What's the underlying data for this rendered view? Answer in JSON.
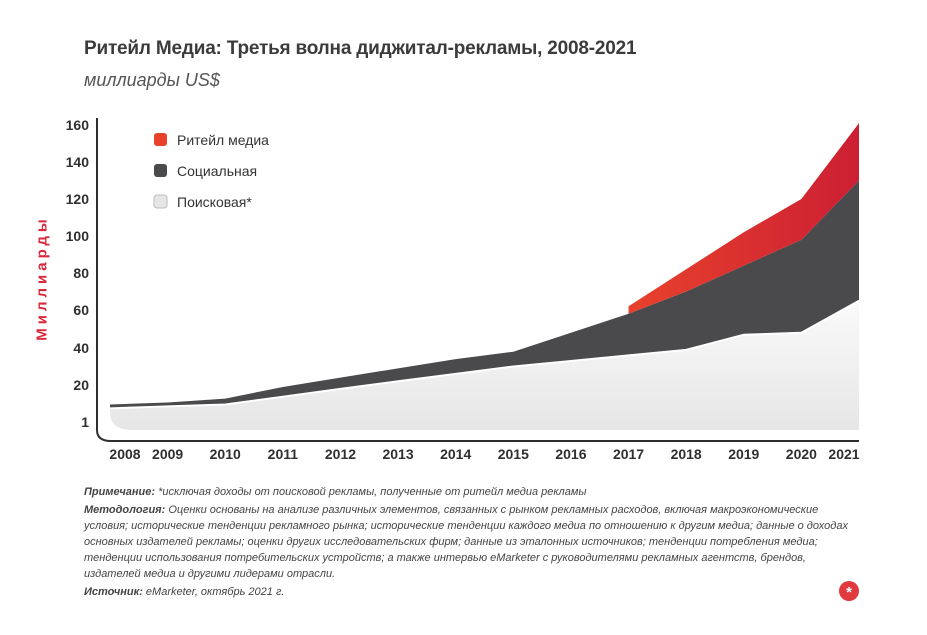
{
  "header": {
    "title": "Ритейл Медиа: Третья волна диджитал-рекламы, 2008-2021",
    "subtitle": "миллиарды US$"
  },
  "colors": {
    "retail": "#e8412c",
    "retail_dark": "#cc1f33",
    "social": "#4a4a4c",
    "search": "#e6e6e6",
    "search_top": "#fafafa",
    "axis": "#2f2f2f",
    "accent": "#d8283a"
  },
  "chart_data": {
    "type": "area",
    "stacked": true,
    "title": "Ритейл Медиа: Третья волна диджитал-рекламы, 2008-2021",
    "subtitle": "миллиарды US$",
    "ylabel": "Миллиарды",
    "xlabel": "",
    "categories": [
      "2008",
      "2009",
      "2010",
      "2011",
      "2012",
      "2013",
      "2014",
      "2015",
      "2016",
      "2017",
      "2018",
      "2019",
      "2020",
      "2021"
    ],
    "y_ticks": [
      1,
      20,
      40,
      60,
      80,
      100,
      120,
      140,
      160
    ],
    "ylim": [
      1,
      160
    ],
    "legend_position": "top-left",
    "grid": false,
    "series": [
      {
        "name": "Поисковая*",
        "cumulative": [
          8,
          9,
          10,
          14,
          18,
          22,
          26,
          30,
          33,
          36,
          39,
          47,
          48,
          65
        ]
      },
      {
        "name": "Социальная",
        "cumulative": [
          10,
          11,
          13,
          19,
          24,
          29,
          34,
          38,
          48,
          58,
          70,
          84,
          98,
          130
        ]
      },
      {
        "name": "Ритейл медиа",
        "cumulative": [
          null,
          null,
          null,
          null,
          null,
          null,
          null,
          null,
          null,
          62,
          82,
          102,
          120,
          161
        ]
      }
    ]
  },
  "legend": [
    {
      "label": "Ритейл медиа",
      "color": "#e8412c"
    },
    {
      "label": "Социальная",
      "color": "#4a4a4c"
    },
    {
      "label": "Поисковая*",
      "color": "#e6e6e6"
    }
  ],
  "notes": {
    "note_label": "Примечание:",
    "note_text": " *исключая доходы от поисковой рекламы, полученные от ритейл медиа рекламы",
    "method_label": "Методология:",
    "method_text": " Оценки основаны на анализе различных элементов, связанных с рынком рекламных расходов, включая макроэкономические условия; исторические тенденции рекламного рынка; исторические тенденции каждого медиа по отношению к другим медиа; данные о доходах основных издателей рекламы; оценки других исследовательских фирм; данные из эталонных источников; тенденции потребления медиа; тенденции использования потребительских устройств; а также интервью eMarketer с руководителями рекламных агентств, брендов, издателей медиа и другими лидерами отрасли.",
    "source_label": "Источник:",
    "source_text": " eMarketer, октябрь 2021 г."
  },
  "logo": {
    "icon": "asterisk-icon",
    "glyph": "*"
  }
}
